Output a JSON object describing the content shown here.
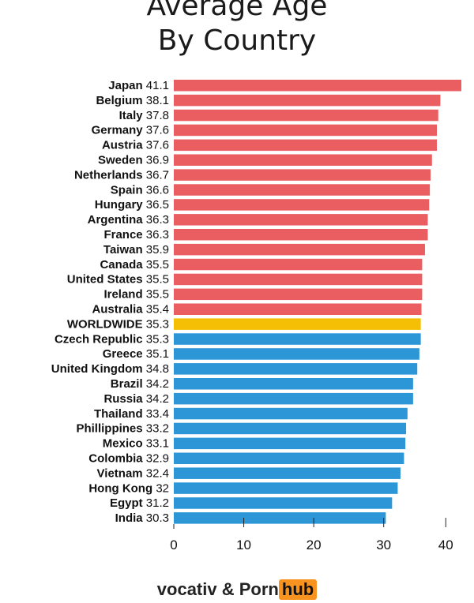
{
  "title_line1": "Average Age",
  "title_line2": "By Country",
  "colors": {
    "above": "#ea5e62",
    "worldwide": "#f5bf06",
    "below": "#2c96d6",
    "axis": "#222222"
  },
  "footer": {
    "brand1": "vocativ",
    "separator": "&",
    "brand2_part1": "Porn",
    "brand2_part2": "hub"
  },
  "chart_data": {
    "type": "bar",
    "orientation": "horizontal",
    "categories": [
      "Japan",
      "Belgium",
      "Italy",
      "Germany",
      "Austria",
      "Sweden",
      "Netherlands",
      "Spain",
      "Hungary",
      "Argentina",
      "France",
      "Taiwan",
      "Canada",
      "United States",
      "Ireland",
      "Australia",
      "WORLDWIDE",
      "Czech Republic",
      "Greece",
      "United Kingdom",
      "Brazil",
      "Russia",
      "Thailand",
      "Phillippines",
      "Mexico",
      "Colombia",
      "Vietnam",
      "Hong Kong",
      "Egypt",
      "India"
    ],
    "values": [
      41.1,
      38.1,
      37.8,
      37.6,
      37.6,
      36.9,
      36.7,
      36.6,
      36.5,
      36.3,
      36.3,
      35.9,
      35.5,
      35.5,
      35.5,
      35.4,
      35.3,
      35.3,
      35.1,
      34.8,
      34.2,
      34.2,
      33.4,
      33.2,
      33.1,
      32.9,
      32.4,
      32,
      31.2,
      30.3
    ],
    "value_labels": [
      "41.1",
      "38.1",
      "37.8",
      "37.6",
      "37.6",
      "36.9",
      "36.7",
      "36.6",
      "36.5",
      "36.3",
      "36.3",
      "35.9",
      "35.5",
      "35.5",
      "35.5",
      "35.4",
      "35.3",
      "35.3",
      "35.1",
      "34.8",
      "34.2",
      "34.2",
      "33.4",
      "33.2",
      "33.1",
      "32.9",
      "32.4",
      "32",
      "31.2",
      "30.3"
    ],
    "highlight_category": "WORLDWIDE",
    "xlim": [
      0,
      41.1
    ],
    "xticks": [
      "0",
      "10",
      "20",
      "30",
      "40"
    ],
    "grid": false
  }
}
